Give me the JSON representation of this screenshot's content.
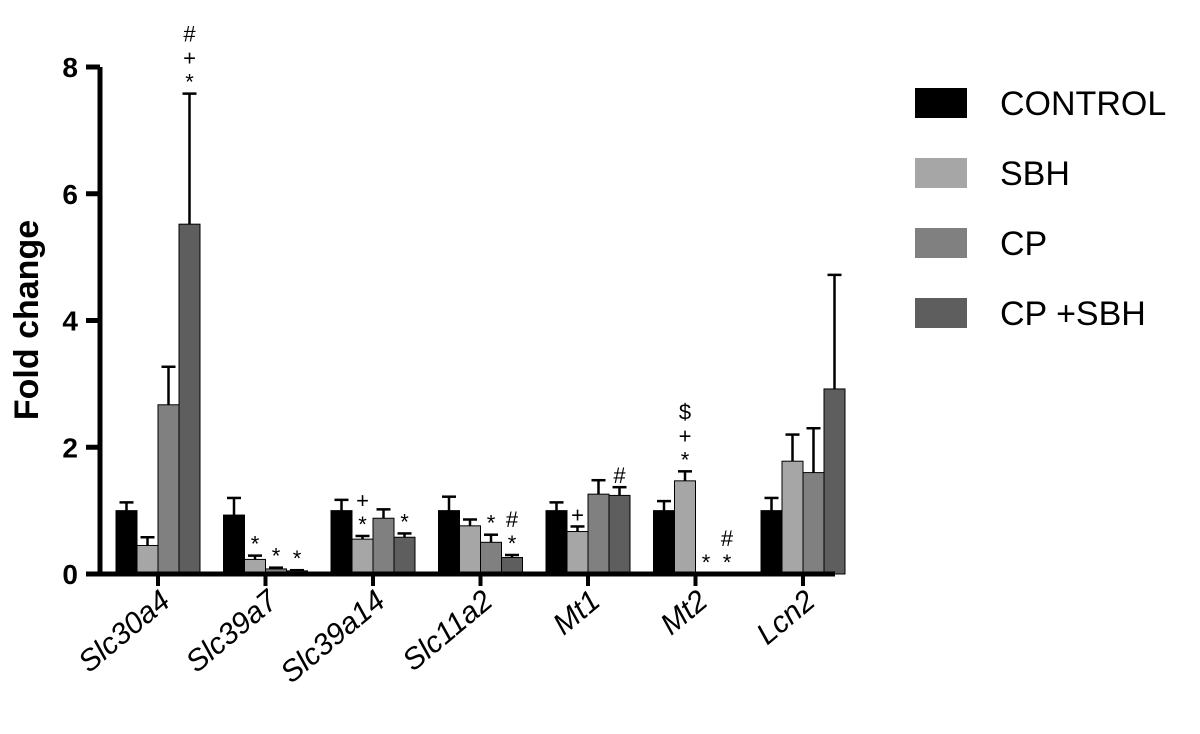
{
  "chart_data": {
    "type": "bar",
    "ylabel": "Fold change",
    "xlabel": "",
    "ylim": [
      0,
      8
    ],
    "yticks": [
      "0",
      "2",
      "4",
      "6",
      "8"
    ],
    "categories": [
      "Slc30a4",
      "Slc39a7",
      "Slc39a14",
      "Slc11a2",
      "Mt1",
      "Mt2",
      "Lcn2"
    ],
    "series": [
      {
        "name": "CONTROL",
        "color": "#000000",
        "values": [
          1.0,
          0.93,
          1.0,
          1.0,
          1.0,
          1.0,
          1.0
        ],
        "errors": [
          0.13,
          0.27,
          0.17,
          0.22,
          0.13,
          0.15,
          0.2
        ]
      },
      {
        "name": "SBH",
        "color": "#a6a6a6",
        "values": [
          0.45,
          0.23,
          0.55,
          0.76,
          0.67,
          1.47,
          1.78
        ],
        "errors": [
          0.13,
          0.06,
          0.05,
          0.1,
          0.08,
          0.15,
          0.42
        ]
      },
      {
        "name": "CP",
        "color": "#808080",
        "values": [
          2.67,
          0.08,
          0.88,
          0.5,
          1.26,
          0.0,
          1.6
        ],
        "errors": [
          0.6,
          0.02,
          0.14,
          0.12,
          0.22,
          0.0,
          0.7
        ]
      },
      {
        "name": "CP +SBH",
        "color": "#5e5e5e",
        "values": [
          5.52,
          0.05,
          0.58,
          0.26,
          1.24,
          0.0,
          2.92
        ],
        "errors": [
          2.06,
          0.01,
          0.06,
          0.04,
          0.13,
          0.0,
          1.8
        ]
      }
    ],
    "annotations": [
      {
        "category": 0,
        "series": 3,
        "marks": [
          "*",
          "+",
          "#"
        ]
      },
      {
        "category": 1,
        "series": 1,
        "marks": [
          "*"
        ]
      },
      {
        "category": 1,
        "series": 2,
        "marks": [
          "*"
        ]
      },
      {
        "category": 1,
        "series": 3,
        "marks": [
          "*"
        ]
      },
      {
        "category": 2,
        "series": 1,
        "marks": [
          "*",
          "+"
        ]
      },
      {
        "category": 2,
        "series": 3,
        "marks": [
          "*"
        ]
      },
      {
        "category": 3,
        "series": 2,
        "marks": [
          "*"
        ]
      },
      {
        "category": 3,
        "series": 3,
        "marks": [
          "*",
          "#"
        ]
      },
      {
        "category": 4,
        "series": 1,
        "marks": [
          "+"
        ]
      },
      {
        "category": 4,
        "series": 3,
        "marks": [
          "#"
        ]
      },
      {
        "category": 5,
        "series": 1,
        "marks": [
          "*",
          "+",
          "$"
        ]
      },
      {
        "category": 5,
        "series": 2,
        "marks": [
          "*"
        ]
      },
      {
        "category": 5,
        "series": 3,
        "marks": [
          "*",
          "#"
        ]
      }
    ],
    "legend_position": "right"
  }
}
